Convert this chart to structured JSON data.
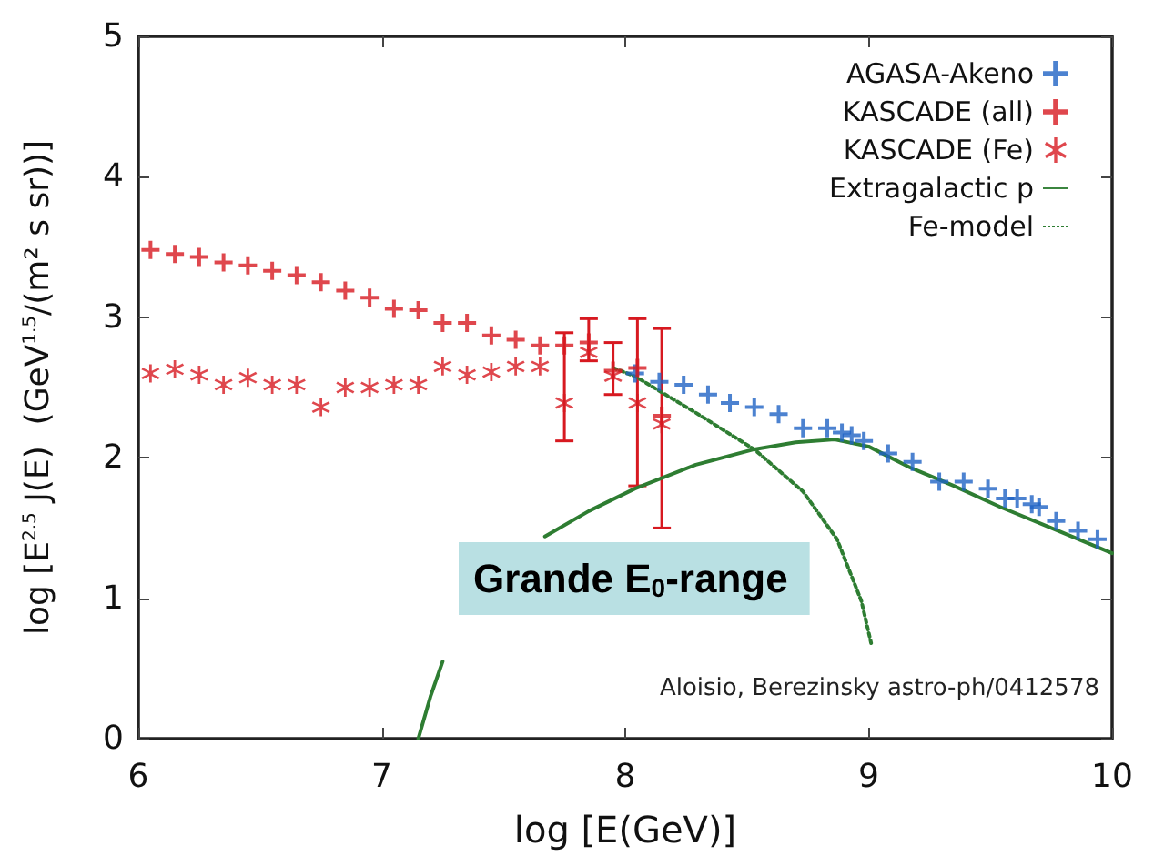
{
  "chart_data": {
    "type": "scatter",
    "xlabel": "log [E(GeV)]",
    "ylabel": "log [E$^{2.5}$ J(E)  (GeV$^{1.5}$/(m² s sr))]",
    "xlim": [
      6,
      10
    ],
    "xticks": [
      6,
      7,
      8,
      9,
      10
    ],
    "ylim": [
      0,
      5
    ],
    "yticks": [
      0,
      1,
      2,
      3,
      4,
      5
    ],
    "grid": false,
    "legend": "top right",
    "annotations": [
      "Grande E$_{0}$-range",
      "Aloisio, Berezinsky astro-ph/0412578"
    ],
    "series": [
      {
        "name": "AGASA-Akeno",
        "marker": "cross",
        "color": "#1f63c4",
        "x": [
          8.04,
          8.14,
          8.24,
          8.34,
          8.43,
          8.53,
          8.63,
          8.73,
          8.83,
          8.89,
          8.93,
          8.98,
          9.08,
          9.18,
          9.29,
          9.39,
          9.49,
          9.56,
          9.61,
          9.67,
          9.7,
          9.77,
          9.86,
          9.94
        ],
        "values": [
          2.6,
          2.54,
          2.52,
          2.45,
          2.39,
          2.36,
          2.31,
          2.21,
          2.21,
          2.18,
          2.16,
          2.12,
          2.03,
          1.97,
          1.83,
          1.83,
          1.78,
          1.71,
          1.71,
          1.67,
          1.65,
          1.55,
          1.48,
          1.42
        ]
      },
      {
        "name": "KASCADE (all)",
        "marker": "cross",
        "color": "#d71920",
        "x": [
          6.05,
          6.15,
          6.25,
          6.35,
          6.45,
          6.55,
          6.65,
          6.75,
          6.85,
          6.95,
          7.05,
          7.15,
          7.25,
          7.35,
          7.45,
          7.55,
          7.65,
          7.75,
          7.85,
          7.95,
          8.05,
          8.15
        ],
        "values": [
          3.48,
          3.45,
          3.43,
          3.39,
          3.37,
          3.33,
          3.3,
          3.25,
          3.19,
          3.14,
          3.06,
          3.05,
          2.96,
          2.96,
          2.87,
          2.84,
          2.8,
          2.8,
          2.82,
          2.62,
          2.64,
          2.3
        ]
      },
      {
        "name": "KASCADE (Fe)",
        "marker": "star",
        "color": "#d71920",
        "x": [
          6.05,
          6.15,
          6.25,
          6.35,
          6.45,
          6.55,
          6.65,
          6.75,
          6.85,
          6.95,
          7.05,
          7.15,
          7.25,
          7.35,
          7.45,
          7.55,
          7.65,
          7.75,
          7.85,
          7.95,
          8.05,
          8.15
        ],
        "values": [
          2.6,
          2.63,
          2.59,
          2.52,
          2.57,
          2.52,
          2.52,
          2.36,
          2.5,
          2.5,
          2.52,
          2.52,
          2.65,
          2.59,
          2.61,
          2.65,
          2.65,
          2.39,
          2.75,
          2.58,
          2.39,
          2.24
        ],
        "errors": [
          null,
          null,
          null,
          null,
          null,
          null,
          null,
          null,
          null,
          null,
          null,
          null,
          null,
          null,
          null,
          null,
          null,
          [
            2.12,
            2.89
          ],
          [
            2.69,
            2.99
          ],
          [
            2.45,
            2.82
          ],
          [
            1.8,
            2.99
          ],
          [
            1.5,
            2.92
          ]
        ]
      },
      {
        "name": "Extragalactic p",
        "type": "line",
        "line_style": "solid",
        "marker": "none",
        "color": "#2e7d32",
        "x": [
          7.15,
          7.2,
          7.25,
          7.45,
          7.67,
          7.85,
          8.04,
          8.29,
          8.53,
          8.7,
          8.86,
          9.0,
          9.17,
          9.35,
          9.54,
          9.75,
          10.0
        ],
        "values": [
          0,
          0.3,
          0.55,
          null,
          1.44,
          1.62,
          1.78,
          1.95,
          2.06,
          2.11,
          2.13,
          2.08,
          1.93,
          1.8,
          1.65,
          1.5,
          1.32
        ]
      },
      {
        "name": "Fe-model",
        "type": "line",
        "line_style": "dotted",
        "marker": "none",
        "color": "#2e7d32",
        "x": [
          7.95,
          8.04,
          8.29,
          8.53,
          8.73,
          8.87,
          8.97,
          9.01
        ],
        "values": [
          2.64,
          2.58,
          2.32,
          2.06,
          1.76,
          1.42,
          0.98,
          0.68
        ]
      }
    ]
  }
}
